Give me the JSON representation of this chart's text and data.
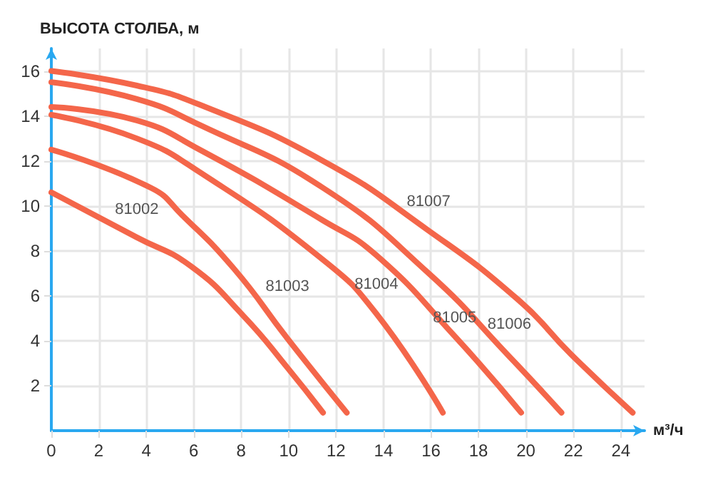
{
  "chart_data": {
    "type": "line",
    "ylabel": "ВЫСОТА СТОЛБА, м",
    "xlabel": "м³/ч",
    "xlim": [
      0,
      25
    ],
    "xticks": [
      0,
      2,
      4,
      6,
      8,
      10,
      12,
      14,
      16,
      18,
      20,
      22,
      24
    ],
    "ylim": [
      0,
      17
    ],
    "yticks": [
      2,
      4,
      6,
      8,
      10,
      12,
      14,
      16
    ],
    "grid": true,
    "legend": false,
    "marker": "none",
    "line_style": "solid",
    "series": [
      {
        "name": "81007",
        "color": "#f4664a",
        "x": [
          0,
          3.6,
          6.25,
          11.45,
          15.9,
          19.7,
          21.9,
          24.5
        ],
        "values": [
          16,
          15.35,
          14.5,
          12,
          8.9,
          5.8,
          3.4,
          0.8
        ]
      },
      {
        "name": "81006",
        "color": "#f4664a",
        "x": [
          0,
          3.6,
          6.25,
          11.45,
          15.9,
          19.3,
          21.5
        ],
        "values": [
          15.5,
          14.75,
          13.6,
          10.8,
          7,
          3.3,
          0.8
        ]
      },
      {
        "name": "81005",
        "color": "#f4664a",
        "x": [
          0,
          3.6,
          6.25,
          11.45,
          13.7,
          17,
          19.8
        ],
        "values": [
          14.4,
          13.8,
          12.5,
          9.35,
          7.8,
          4.2,
          0.8
        ]
      },
      {
        "name": "81004",
        "color": "#f4664a",
        "x": [
          0,
          3.6,
          6.25,
          11.45,
          13.7,
          16.5
        ],
        "values": [
          14.05,
          13,
          11.5,
          7.6,
          5.2,
          0.8
        ]
      },
      {
        "name": "81003",
        "color": "#f4664a",
        "x": [
          0,
          4.2,
          5.5,
          7.7,
          9.95,
          12.45
        ],
        "values": [
          12.5,
          10.8,
          9.6,
          7.2,
          4.1,
          0.8
        ]
      },
      {
        "name": "81002",
        "color": "#f4664a",
        "x": [
          0,
          3.6,
          5.9,
          8.1,
          9.95,
          11.45
        ],
        "values": [
          10.6,
          8.6,
          7.3,
          5.1,
          2.8,
          0.8
        ]
      }
    ]
  }
}
